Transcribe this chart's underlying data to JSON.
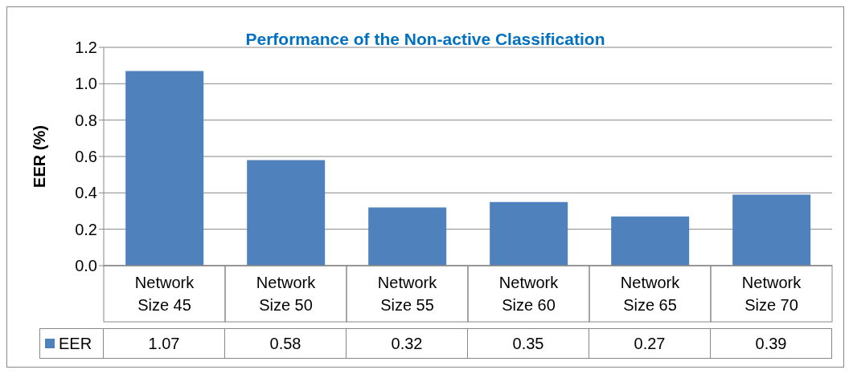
{
  "chart_data": {
    "type": "bar",
    "title": "Performance of the Non-active Classification",
    "ylabel": "EER (%)",
    "categories": [
      "Network Size 45",
      "Network Size 50",
      "Network Size 55",
      "Network Size 60",
      "Network Size 65",
      "Network Size 70"
    ],
    "series": [
      {
        "name": "EER",
        "color": "#4f81bd",
        "values": [
          1.07,
          0.58,
          0.32,
          0.35,
          0.27,
          0.39
        ]
      }
    ],
    "ylim": [
      0,
      1.2
    ],
    "yticks": [
      {
        "value": 0,
        "label": "0.0"
      },
      {
        "value": 0.2,
        "label": "0.2"
      },
      {
        "value": 0.4,
        "label": "0.4"
      },
      {
        "value": 0.6,
        "label": "0.6"
      },
      {
        "value": 0.8,
        "label": "0.8"
      },
      {
        "value": 1,
        "label": "1.0"
      },
      {
        "value": 1.2,
        "label": "1.2"
      }
    ],
    "grid": "y",
    "legend": "bottom",
    "data_labels": true
  }
}
